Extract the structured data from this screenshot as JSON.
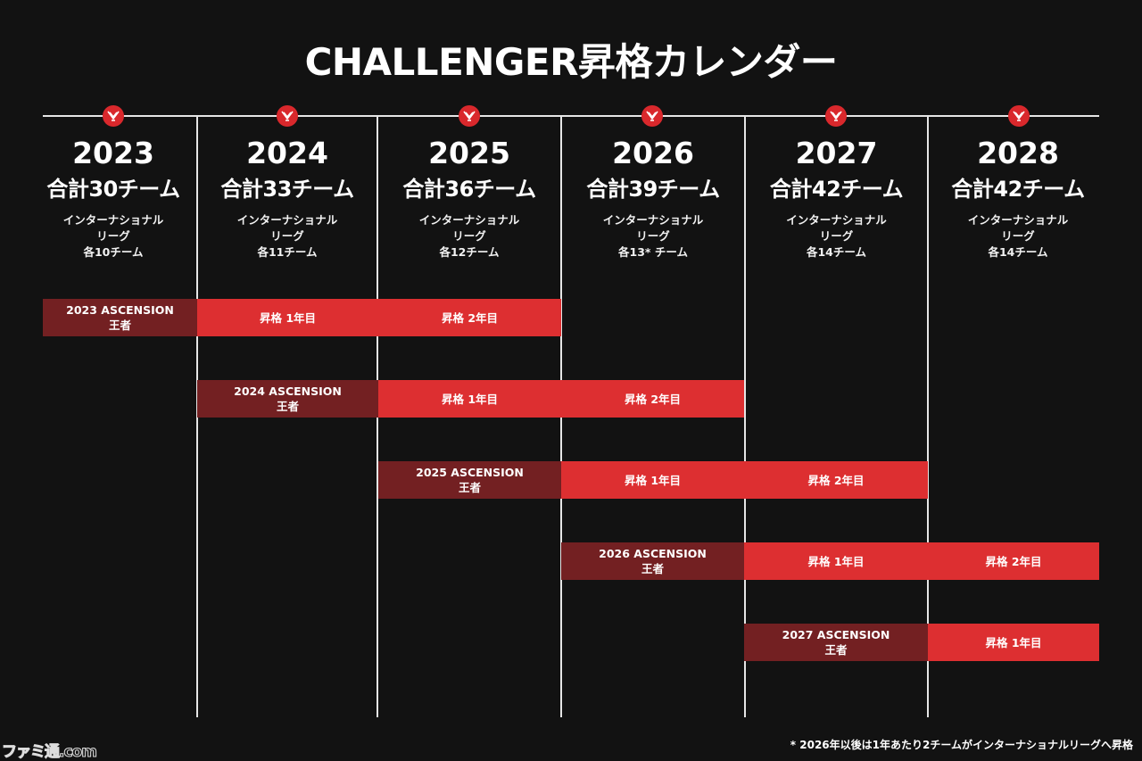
{
  "title": "CHALLENGER昇格カレンダー",
  "colors": {
    "background": "#121212",
    "champion": "#732022",
    "promotion": "#dd2f31",
    "marker": "#d9282c",
    "line": "#e6e6e6"
  },
  "marker_icon": "valorant-champions-icon",
  "years": [
    {
      "year": "2023",
      "total": "合計30チーム",
      "desc1": "インターナショナル",
      "desc2": "リーグ",
      "desc3": "各10チーム"
    },
    {
      "year": "2024",
      "total": "合計33チーム",
      "desc1": "インターナショナル",
      "desc2": "リーグ",
      "desc3": "各11チーム"
    },
    {
      "year": "2025",
      "total": "合計36チーム",
      "desc1": "インターナショナル",
      "desc2": "リーグ",
      "desc3": "各12チーム"
    },
    {
      "year": "2026",
      "total": "合計39チーム",
      "desc1": "インターナショナル",
      "desc2": "リーグ",
      "desc3": "各13* チーム"
    },
    {
      "year": "2027",
      "total": "合計42チーム",
      "desc1": "インターナショナル",
      "desc2": "リーグ",
      "desc3": "各14チーム"
    },
    {
      "year": "2028",
      "total": "合計42チーム",
      "desc1": "インターナショナル",
      "desc2": "リーグ",
      "desc3": "各14チーム"
    }
  ],
  "rows": [
    {
      "champion_line1": "2023 ASCENSION",
      "champion_line2": "王者",
      "year1": "昇格 1年目",
      "year2": "昇格 2年目"
    },
    {
      "champion_line1": "2024 ASCENSION",
      "champion_line2": "王者",
      "year1": "昇格 1年目",
      "year2": "昇格 2年目"
    },
    {
      "champion_line1": "2025 ASCENSION",
      "champion_line2": "王者",
      "year1": "昇格 1年目",
      "year2": "昇格 2年目"
    },
    {
      "champion_line1": "2026 ASCENSION",
      "champion_line2": "王者",
      "year1": "昇格 1年目",
      "year2": "昇格 2年目"
    },
    {
      "champion_line1": "2027 ASCENSION",
      "champion_line2": "王者",
      "year1": "昇格 1年目"
    }
  ],
  "footnote": "* 2026年以後は1年あたり2チームがインターナショナルリーグへ昇格",
  "watermark": "ファミ通.com"
}
